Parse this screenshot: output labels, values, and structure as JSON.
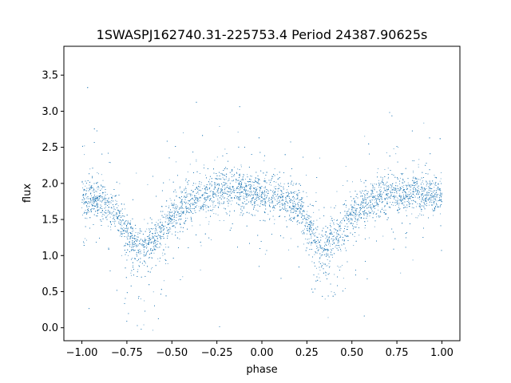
{
  "chart_data": {
    "type": "scatter",
    "title": "1SWASPJ162740.31-225753.4 Period 24387.90625s",
    "xlabel": "phase",
    "ylabel": "flux",
    "xlim": [
      -1.1,
      1.1
    ],
    "ylim": [
      -0.18,
      3.9
    ],
    "xticks": [
      -1.0,
      -0.75,
      -0.5,
      -0.25,
      0.0,
      0.25,
      0.5,
      0.75,
      1.0
    ],
    "xtick_labels": [
      "−1.00",
      "−0.75",
      "−0.50",
      "−0.25",
      "0.00",
      "0.25",
      "0.50",
      "0.75",
      "1.00"
    ],
    "yticks": [
      0.0,
      0.5,
      1.0,
      1.5,
      2.0,
      2.5,
      3.0,
      3.5
    ],
    "ytick_labels": [
      "0.0",
      "0.5",
      "1.0",
      "1.5",
      "2.0",
      "2.5",
      "3.0",
      "3.5"
    ],
    "grid": false,
    "legend": "none",
    "marker_color": "#1f77b4",
    "series": [
      {
        "description_of_shape": "folded light curve, phase from -1 to 1 (two cycles)",
        "profile_phase": [
          -1.0,
          -0.9,
          -0.8,
          -0.75,
          -0.7,
          -0.65,
          -0.6,
          -0.5,
          -0.4,
          -0.3,
          -0.2,
          -0.1,
          0.0,
          0.1,
          0.2,
          0.25,
          0.3,
          0.35,
          0.4,
          0.5,
          0.6,
          0.7,
          0.8,
          0.9,
          1.0
        ],
        "profile_flux": [
          1.8,
          1.75,
          1.55,
          1.35,
          1.2,
          1.15,
          1.25,
          1.55,
          1.75,
          1.85,
          1.9,
          1.9,
          1.85,
          1.8,
          1.65,
          1.5,
          1.25,
          1.15,
          1.25,
          1.55,
          1.75,
          1.85,
          1.85,
          1.85,
          1.85
        ],
        "n_points": 9000
      }
    ]
  }
}
